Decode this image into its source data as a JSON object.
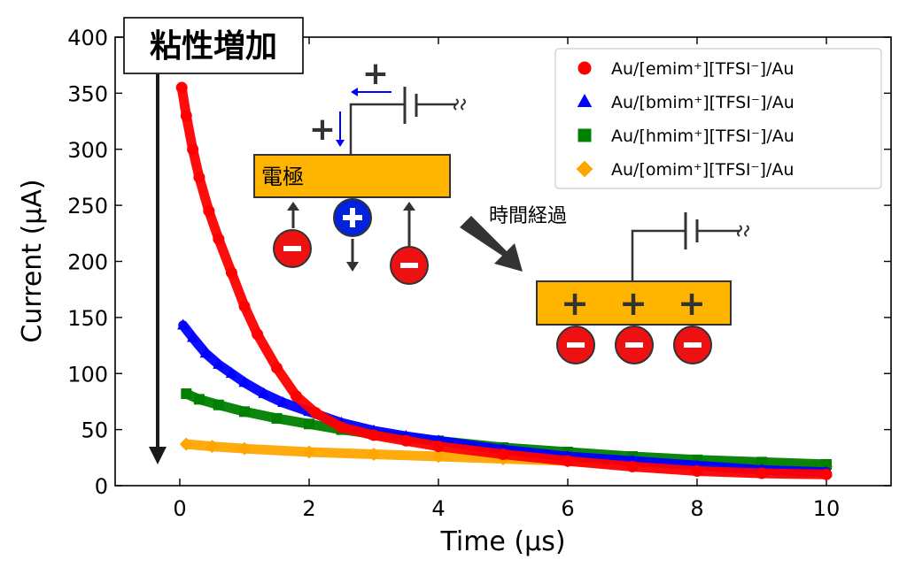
{
  "chart_data": {
    "type": "scatter",
    "xlabel": "Time (μs)",
    "ylabel": "Current (μA)",
    "xlim": [
      -1,
      11
    ],
    "ylim": [
      0,
      400
    ],
    "xticks": [
      0,
      2,
      4,
      6,
      8,
      10
    ],
    "yticks": [
      0,
      50,
      100,
      150,
      200,
      250,
      300,
      350,
      400
    ],
    "grid": false,
    "legend_position": "top-right",
    "series": [
      {
        "name": "Au/[emim⁺][TFSI⁻]/Au",
        "color": "#ff0000",
        "marker": "circle",
        "points": [
          [
            0.03,
            355
          ],
          [
            0.1,
            330
          ],
          [
            0.2,
            300
          ],
          [
            0.3,
            275
          ],
          [
            0.45,
            245
          ],
          [
            0.6,
            220
          ],
          [
            0.8,
            190
          ],
          [
            1.0,
            160
          ],
          [
            1.2,
            135
          ],
          [
            1.5,
            105
          ],
          [
            1.8,
            80
          ],
          [
            2.1,
            65
          ],
          [
            2.5,
            52
          ],
          [
            3.0,
            45
          ],
          [
            3.5,
            40
          ],
          [
            4.0,
            35
          ],
          [
            5.0,
            28
          ],
          [
            6.0,
            22
          ],
          [
            7.0,
            17
          ],
          [
            8.0,
            13
          ],
          [
            9.0,
            11
          ],
          [
            10.0,
            10
          ]
        ]
      },
      {
        "name": "Au/[bmim⁺][TFSI⁻]/Au",
        "color": "#0000ff",
        "marker": "triangle",
        "points": [
          [
            0.05,
            143
          ],
          [
            0.2,
            132
          ],
          [
            0.4,
            118
          ],
          [
            0.6,
            108
          ],
          [
            0.8,
            100
          ],
          [
            1.0,
            92
          ],
          [
            1.3,
            82
          ],
          [
            1.6,
            74
          ],
          [
            2.0,
            66
          ],
          [
            2.5,
            56
          ],
          [
            3.0,
            49
          ],
          [
            3.5,
            44
          ],
          [
            4.0,
            40
          ],
          [
            5.0,
            32
          ],
          [
            6.0,
            26
          ],
          [
            7.0,
            22
          ],
          [
            8.0,
            18
          ],
          [
            9.0,
            14
          ],
          [
            10.0,
            12
          ]
        ]
      },
      {
        "name": "Au/[hmim⁺][TFSI⁻]/Au",
        "color": "#008000",
        "marker": "square",
        "points": [
          [
            0.1,
            82
          ],
          [
            0.3,
            77
          ],
          [
            0.6,
            72
          ],
          [
            1.0,
            66
          ],
          [
            1.5,
            60
          ],
          [
            2.0,
            55
          ],
          [
            2.5,
            50
          ],
          [
            3.0,
            46
          ],
          [
            3.5,
            43
          ],
          [
            4.0,
            40
          ],
          [
            5.0,
            34
          ],
          [
            6.0,
            30
          ],
          [
            7.0,
            26
          ],
          [
            8.0,
            23
          ],
          [
            9.0,
            21
          ],
          [
            10.0,
            19
          ]
        ]
      },
      {
        "name": "Au/[omim⁺][TFSI⁻]/Au",
        "color": "#ffa500",
        "marker": "diamond",
        "points": [
          [
            0.1,
            37
          ],
          [
            0.5,
            35
          ],
          [
            1.0,
            33
          ],
          [
            2.0,
            30
          ],
          [
            3.0,
            28
          ],
          [
            4.0,
            26
          ],
          [
            5.0,
            24
          ],
          [
            6.0,
            22
          ],
          [
            7.0,
            21
          ],
          [
            8.0,
            19
          ],
          [
            9.0,
            18
          ],
          [
            10.0,
            17
          ]
        ]
      }
    ],
    "annotations": {
      "viscosity_label": "粘性増加",
      "electrode_label": "電極",
      "time_elapsed_label": "時間経過",
      "plus_sign": "+"
    }
  }
}
